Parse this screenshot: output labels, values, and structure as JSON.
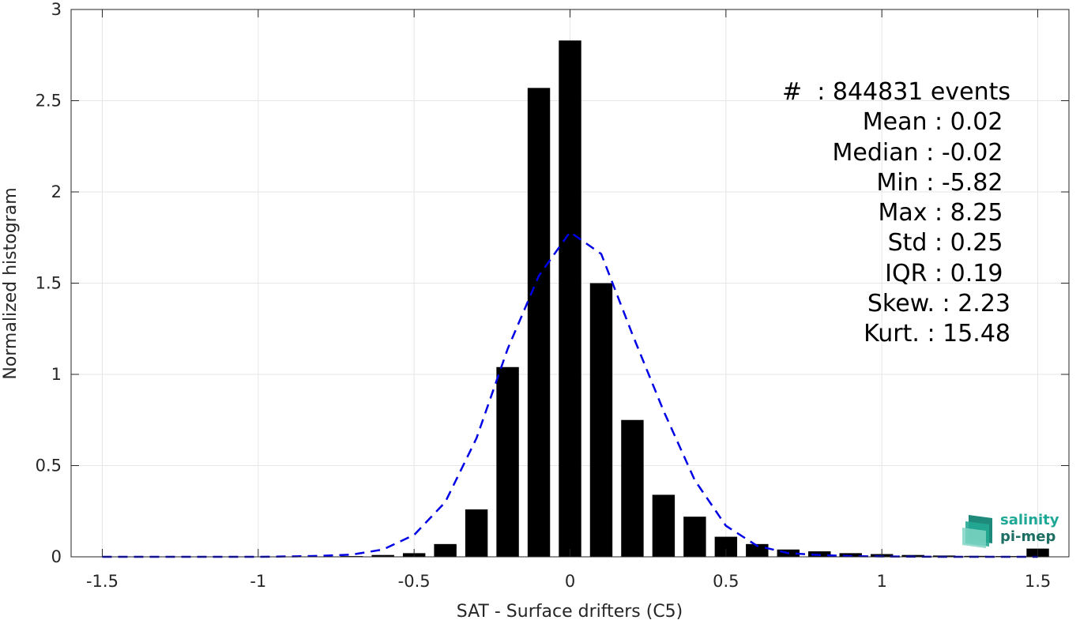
{
  "chart_data": {
    "type": "bar",
    "xlabel": "SAT - Surface drifters (C5)",
    "ylabel": "Normalized histogram",
    "xlim": [
      -1.6,
      1.6
    ],
    "ylim": [
      0,
      3
    ],
    "xticks": [
      -1.5,
      -1,
      -0.5,
      0,
      0.5,
      1,
      1.5
    ],
    "xtick_labels": [
      "-1.5",
      "-1",
      "-0.5",
      "0",
      "0.5",
      "1",
      "1.5"
    ],
    "yticks": [
      0,
      0.5,
      1,
      1.5,
      2,
      2.5,
      3
    ],
    "ytick_labels": [
      "0",
      "0.5",
      "1",
      "1.5",
      "2",
      "2.5",
      "3"
    ],
    "grid": true,
    "bin_width": 0.1,
    "bar_fraction": 0.72,
    "bars": {
      "x": [
        -1.5,
        -1.4,
        -1.3,
        -1.2,
        -1.1,
        -1.0,
        -0.9,
        -0.8,
        -0.7,
        -0.6,
        -0.5,
        -0.4,
        -0.3,
        -0.2,
        -0.1,
        0.0,
        0.1,
        0.2,
        0.3,
        0.4,
        0.5,
        0.6,
        0.7,
        0.8,
        0.9,
        1.0,
        1.1,
        1.2,
        1.3,
        1.4,
        1.5
      ],
      "values": [
        0.001,
        0.001,
        0.001,
        0.001,
        0.001,
        0.001,
        0.001,
        0.002,
        0.004,
        0.01,
        0.02,
        0.07,
        0.26,
        1.04,
        2.57,
        2.83,
        1.5,
        0.75,
        0.34,
        0.22,
        0.11,
        0.07,
        0.04,
        0.03,
        0.02,
        0.015,
        0.01,
        0.007,
        0.005,
        0.004,
        0.045
      ],
      "color": "#000000"
    },
    "fit_curve": {
      "style": "dashed",
      "color": "#0000e6",
      "x": [
        -1.5,
        -1.4,
        -1.3,
        -1.2,
        -1.1,
        -1.0,
        -0.9,
        -0.8,
        -0.7,
        -0.6,
        -0.5,
        -0.4,
        -0.3,
        -0.2,
        -0.1,
        0.0,
        0.1,
        0.2,
        0.3,
        0.4,
        0.5,
        0.6,
        0.7,
        0.8,
        0.9,
        1.0,
        1.1,
        1.2,
        1.3,
        1.4,
        1.5
      ],
      "values": [
        0,
        0,
        0,
        0,
        0,
        0,
        0.002,
        0.005,
        0.012,
        0.04,
        0.12,
        0.3,
        0.65,
        1.14,
        1.54,
        1.78,
        1.66,
        1.22,
        0.8,
        0.42,
        0.17,
        0.06,
        0.02,
        0.01,
        0.004,
        0.002,
        0.001,
        0,
        0,
        0,
        0
      ]
    }
  },
  "stats": [
    "#  : 844831 events",
    "Mean : 0.02 ",
    "Median : -0.02 ",
    "Min : -5.82 ",
    "Max : 8.25 ",
    "Std : 0.25 ",
    "IQR : 0.19 ",
    "Skew. : 2.23",
    "Kurt. : 15.48"
  ],
  "logo": {
    "line1": "salinity",
    "line2": "pi-mep"
  },
  "colors": {
    "grid": "#e6e6e6",
    "axis": "#262626",
    "logo_accent": "#1fa896"
  }
}
